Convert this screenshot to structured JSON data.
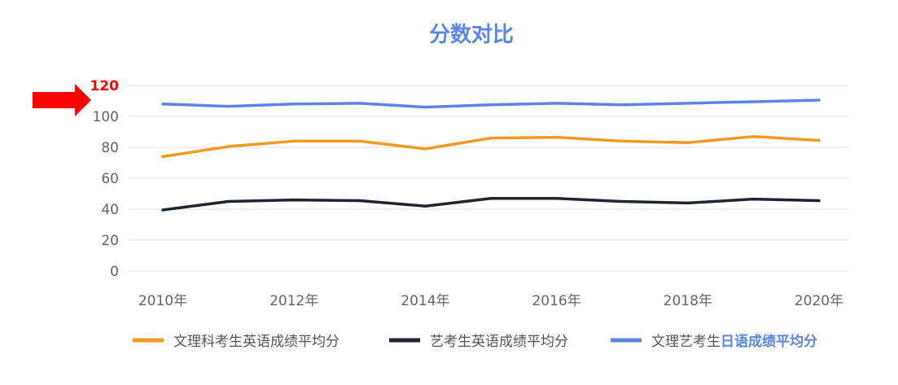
{
  "chart_data": {
    "type": "line",
    "title": "分数对比",
    "xlabel": "",
    "ylabel": "",
    "x": [
      2010,
      2011,
      2012,
      2013,
      2014,
      2015,
      2016,
      2017,
      2018,
      2019,
      2020
    ],
    "x_tick_labels": [
      "2010年",
      "2012年",
      "2014年",
      "2016年",
      "2018年",
      "2020年"
    ],
    "y_ticks": [
      "0",
      "20",
      "40",
      "60",
      "80",
      "100",
      "120"
    ],
    "highlighted_tick": "120",
    "ylim": [
      0,
      120
    ],
    "grid": true,
    "legend_position": "bottom",
    "series": [
      {
        "name": "文理科考生英语成绩平均分",
        "color": "#f29b24",
        "values": [
          74,
          80.5,
          84,
          84,
          79,
          86,
          86.5,
          84,
          83,
          87,
          84.5
        ]
      },
      {
        "name": "艺考生英语成绩平均分",
        "color": "#1f2630",
        "values": [
          39.5,
          45,
          46,
          45.5,
          42,
          47,
          47,
          45,
          44,
          46.5,
          45.5
        ]
      },
      {
        "name": "文理艺考生日语成绩平均分",
        "name_plain": "文理艺考生",
        "name_bold": "日语成绩平均分",
        "color": "#5b86e5",
        "values": [
          108,
          106.5,
          108,
          108.5,
          106,
          107.5,
          108.5,
          107.5,
          108.5,
          109.5,
          110.5
        ]
      }
    ],
    "annotation": {
      "type": "arrow",
      "points_to": "120",
      "color": "#ff0000"
    }
  }
}
